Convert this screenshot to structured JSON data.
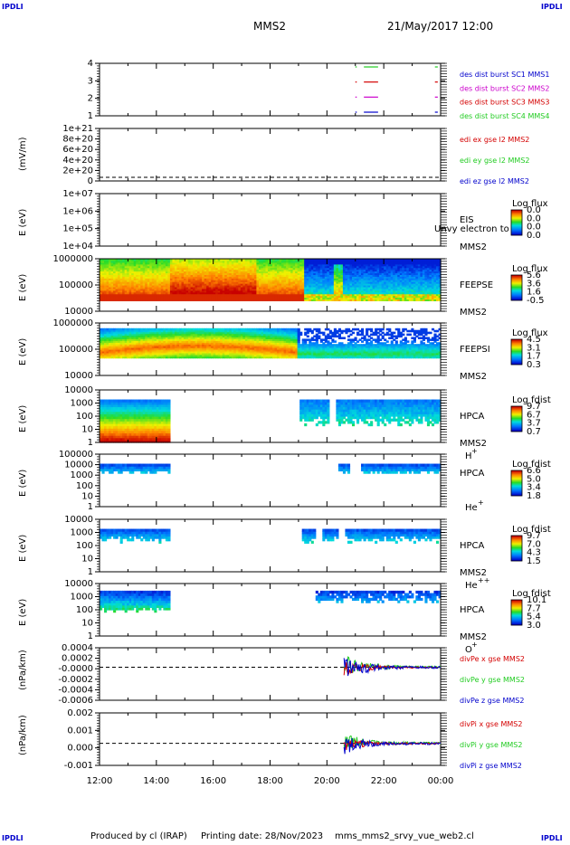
{
  "corners": {
    "top_left": "IPDLI",
    "top_right": "IPDLI",
    "bottom_left": "IPDLI",
    "bottom_right": "IPDLI"
  },
  "header": {
    "spacecraft": "MMS2",
    "datetime": "21/May/2017 12:00"
  },
  "footer": {
    "produced_by": "Produced by cl (IRAP)",
    "printing_date": "Printing date: 28/Nov/2023",
    "file": "mms_mms2_srvy_vue_web2.cl"
  },
  "colors": {
    "red": "#d40000",
    "magenta": "#cc00cc",
    "green": "#22cc22",
    "blue": "#0000cc"
  },
  "chart_data": {
    "type": "spectrogram-stack",
    "x_tick_labels": [
      "12:00",
      "14:00",
      "16:00",
      "18:00",
      "20:00",
      "22:00",
      "00:00"
    ],
    "x_range_hours": [
      12,
      24
    ],
    "panels": [
      {
        "id": "burst",
        "type": "timeline",
        "yticks": [
          "1",
          "2",
          "3",
          "4"
        ],
        "legend": [
          {
            "text": "des dist burst SC1 MMS1",
            "color": "#0000cc"
          },
          {
            "text": "des dist burst SC2 MMS2",
            "color": "#cc00cc"
          },
          {
            "text": "des dist burst SC3 MMS3",
            "color": "#d40000"
          },
          {
            "text": "des dist burst SC4 MMS4",
            "color": "#22cc22"
          }
        ]
      },
      {
        "id": "edi",
        "type": "line",
        "ylabel": "(mV/m)",
        "yticks": [
          "0",
          "2e+20",
          "4e+20",
          "6e+20",
          "8e+20",
          "1e+21"
        ],
        "legend": [
          {
            "text": "edi ex gse l2 MMS2",
            "color": "#d40000"
          },
          {
            "text": "edi ey gse l2 MMS2",
            "color": "#22cc22"
          },
          {
            "text": "edi ez gse l2 MMS2",
            "color": "#0000cc"
          }
        ]
      },
      {
        "id": "eis",
        "type": "heatmap",
        "ylabel": "E (eV)",
        "yticks": [
          "1e+04",
          "1e+05",
          "1e+06",
          "1e+07"
        ],
        "inst": "EIS",
        "sc": "MMS2",
        "overlay": "Unvy electron to",
        "cbar": {
          "title": "Log flux",
          "ticks": [
            "0.0",
            "0.0",
            "0.0",
            "0.0"
          ]
        }
      },
      {
        "id": "feepse",
        "type": "heatmap",
        "ylabel": "E (eV)",
        "yticks": [
          "10000",
          "100000",
          "1000000"
        ],
        "inst": "FEEPSE",
        "sc": "MMS2",
        "cbar": {
          "title": "Log flux",
          "ticks": [
            "5.6",
            "3.6",
            "1.6",
            "-0.5"
          ]
        }
      },
      {
        "id": "feepsi",
        "type": "heatmap",
        "ylabel": "E (eV)",
        "yticks": [
          "10000",
          "100000",
          "1000000"
        ],
        "inst": "FEEPSI",
        "sc": "MMS2",
        "cbar": {
          "title": "Log flux",
          "ticks": [
            "4.5",
            "3.1",
            "1.7",
            "0.3"
          ]
        }
      },
      {
        "id": "hpca_h",
        "type": "heatmap",
        "ylabel": "E (eV)",
        "yticks": [
          "1",
          "10",
          "100",
          "1000",
          "10000"
        ],
        "inst": "HPCA",
        "sc": "MMS2",
        "species": "H",
        "sup": "+",
        "cbar": {
          "title": "Log fdist",
          "ticks": [
            "9.7",
            "6.7",
            "3.7",
            "0.7"
          ]
        }
      },
      {
        "id": "hpca_he",
        "type": "heatmap",
        "ylabel": "E (eV)",
        "yticks": [
          "1",
          "10",
          "100",
          "1000",
          "10000",
          "100000"
        ],
        "inst": "HPCA",
        "species": "He",
        "sup": "+",
        "cbar": {
          "title": "Log fdist",
          "ticks": [
            "6.6",
            "5.0",
            "3.4",
            "1.8"
          ]
        }
      },
      {
        "id": "hpca_hepp",
        "type": "heatmap",
        "ylabel": "E (eV)",
        "yticks": [
          "1",
          "10",
          "100",
          "1000",
          "10000"
        ],
        "inst": "HPCA",
        "sc": "MMS2",
        "species": "He",
        "sup": "++",
        "cbar": {
          "title": "Log fdist",
          "ticks": [
            "9.7",
            "7.0",
            "4.3",
            "1.5"
          ]
        }
      },
      {
        "id": "hpca_o",
        "type": "heatmap",
        "ylabel": "E (eV)",
        "yticks": [
          "1",
          "10",
          "100",
          "1000",
          "10000"
        ],
        "inst": "HPCA",
        "sc": "MMS2",
        "species": "O",
        "sup": "+",
        "cbar": {
          "title": "Log fdist",
          "ticks": [
            "10.1",
            "7.7",
            "5.4",
            "3.0"
          ]
        }
      },
      {
        "id": "divpe",
        "type": "line",
        "ylabel": "(nPa/km)",
        "yticks": [
          "-0.0006",
          "-0.0004",
          "-0.0002",
          "-0.0000",
          "0.0002",
          "0.0004"
        ],
        "legend": [
          {
            "text": "divPe x gse MMS2",
            "color": "#d40000"
          },
          {
            "text": "divPe y gse MMS2",
            "color": "#22cc22"
          },
          {
            "text": "divPe z gse MMS2",
            "color": "#0000cc"
          }
        ]
      },
      {
        "id": "divpi",
        "type": "line",
        "ylabel": "(nPa/km)",
        "yticks": [
          "-0.001",
          "0.000",
          "0.001",
          "0.002"
        ],
        "legend": [
          {
            "text": "divPi x gse MMS2",
            "color": "#d40000"
          },
          {
            "text": "divPi y gse MMS2",
            "color": "#22cc22"
          },
          {
            "text": "divPi z gse MMS2",
            "color": "#0000cc"
          }
        ]
      }
    ]
  }
}
